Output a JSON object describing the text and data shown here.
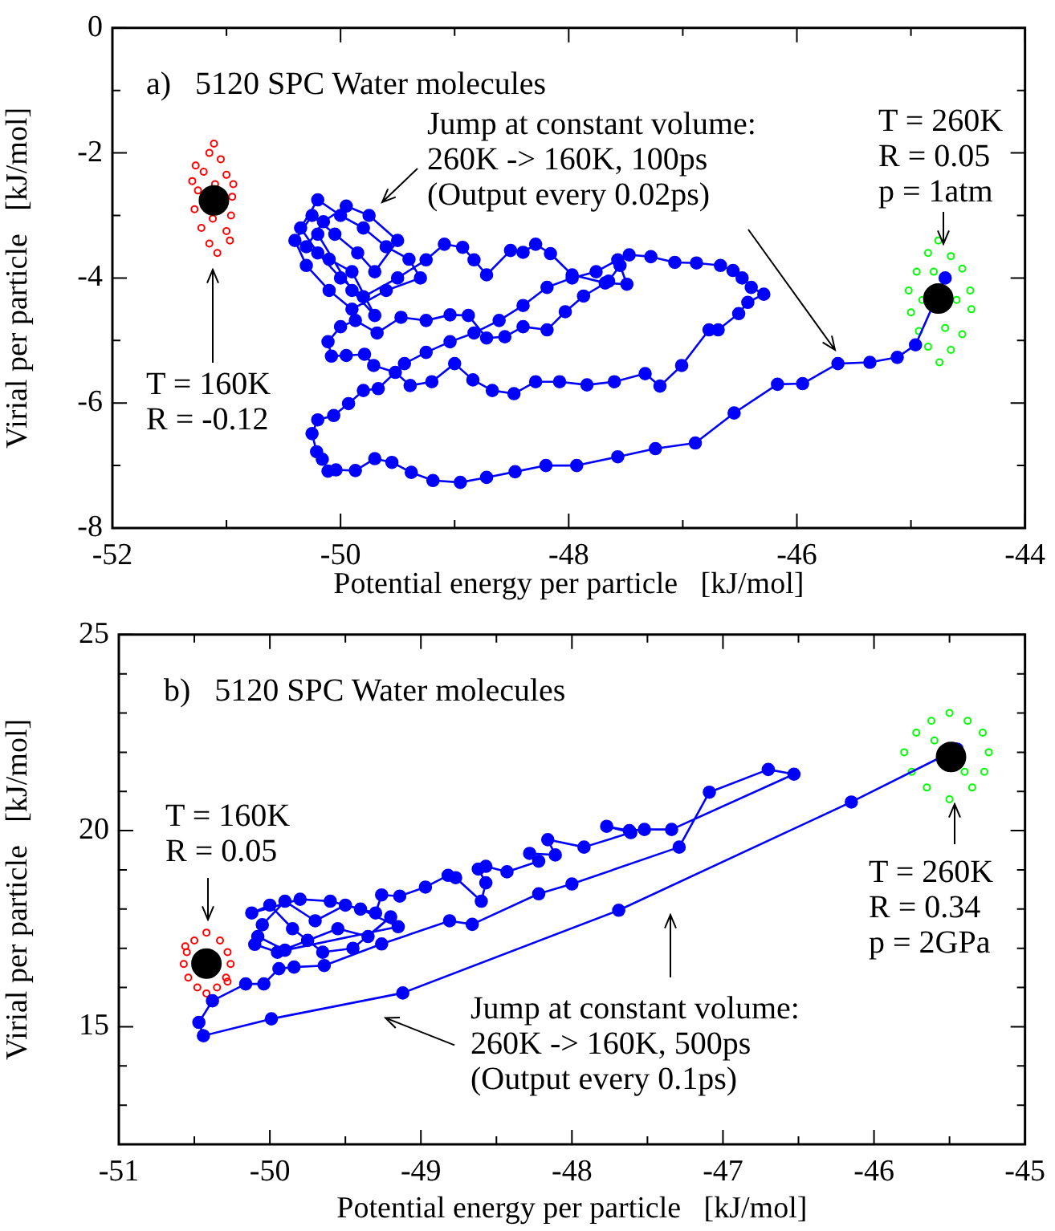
{
  "chart_data": [
    {
      "type": "scatter",
      "title": "a)   5120 SPC Water molecules",
      "xlabel": "Potential energy per particle   [kJ/mol]",
      "ylabel": "Virial per particle   [kJ/mol]",
      "marker": "circle",
      "line_style": "solid",
      "xlim": [
        -52,
        -44
      ],
      "ylim": [
        -8,
        0
      ],
      "xticks": [
        -52,
        {
          "value": -51,
          "label": null
        },
        -50,
        {
          "value": -49,
          "label": null
        },
        -48,
        {
          "value": -47,
          "label": null
        },
        -46,
        {
          "value": -45,
          "label": null
        },
        -44
      ],
      "yticks": [
        -8,
        {
          "value": -7,
          "label": null
        },
        -6,
        {
          "value": -5,
          "label": null
        },
        -4,
        {
          "value": -3,
          "label": null
        },
        -2,
        {
          "value": -1,
          "label": null
        },
        0
      ],
      "series": [
        {
          "type": "scatter",
          "color": "#ff0000",
          "x": [
            -51.11,
            -51.15,
            -51.05,
            -51.2,
            -51.0,
            -51.25,
            -50.95,
            -51.28,
            -50.96,
            -51.22,
            -51.0,
            -51.15,
            -51.08,
            -51.1,
            -51.12,
            -51.27,
            -50.97,
            -51.3,
            -50.94
          ],
          "values": [
            -1.85,
            -2.0,
            -2.1,
            -2.3,
            -2.35,
            -2.6,
            -2.7,
            -2.9,
            -3.0,
            -3.2,
            -3.25,
            -3.45,
            -3.6,
            -2.5,
            -3.05,
            -2.2,
            -3.4,
            -2.45,
            -2.5
          ]
        },
        {
          "type": "scatter",
          "color": "#00ff00",
          "x": [
            -44.76,
            -44.85,
            -44.65,
            -44.95,
            -44.55,
            -45.02,
            -44.48,
            -45.0,
            -44.47,
            -44.93,
            -44.55,
            -44.85,
            -44.65,
            -44.75,
            -44.9,
            -44.6,
            -44.8,
            -44.7
          ],
          "values": [
            -3.4,
            -3.6,
            -3.65,
            -3.9,
            -3.85,
            -4.2,
            -4.2,
            -4.55,
            -4.5,
            -4.85,
            -4.9,
            -5.1,
            -5.15,
            -5.35,
            -4.35,
            -4.35,
            -3.9,
            -4.8
          ]
        },
        {
          "type": "line",
          "color": "#0000ff",
          "x": [
            -44.7,
            -44.96,
            -45.12,
            -45.36,
            -45.64,
            -45.95,
            -46.17,
            -46.55,
            -46.89,
            -47.24,
            -47.57,
            -47.93,
            -48.2,
            -48.47,
            -48.72,
            -48.95,
            -49.19,
            -49.38,
            -49.55,
            -49.7,
            -49.87,
            -50.04,
            -50.11,
            -50.16,
            -50.21,
            -50.25,
            -50.2,
            -50.06,
            -49.93,
            -49.8,
            -49.67,
            -49.44,
            -49.25,
            -49.04,
            -48.83,
            -48.61,
            -48.4,
            -48.19,
            -47.97,
            -47.76,
            -47.57,
            -47.47,
            -47.28,
            -47.07,
            -46.88,
            -46.67,
            -46.56,
            -46.48,
            -46.4,
            -46.29,
            -46.43,
            -46.51,
            -46.69,
            -46.77,
            -47.01,
            -47.2,
            -47.33,
            -47.6,
            -47.84,
            -48.08,
            -48.29,
            -48.48,
            -48.67,
            -48.84,
            -49.0,
            -49.2,
            -49.39,
            -49.52,
            -49.71,
            -49.79,
            -49.95,
            -50.08,
            -50.11,
            -50.0,
            -49.87,
            -49.68,
            -49.47,
            -49.25,
            -49.04,
            -48.88,
            -48.72,
            -48.56,
            -48.4,
            -48.19,
            -48.03,
            -47.87,
            -47.65,
            -47.55,
            -47.49,
            -47.68,
            -47.97,
            -48.16,
            -48.29,
            -48.4,
            -48.51,
            -48.72,
            -48.83,
            -48.93,
            -49.09,
            -49.25,
            -49.5,
            -49.8,
            -50.0,
            -50.2,
            -50.35,
            -50.2,
            -50.0,
            -49.8,
            -49.6,
            -49.4,
            -49.3,
            -49.6,
            -49.9,
            -50.1,
            -50.3,
            -50.4,
            -50.25,
            -50.05,
            -49.85,
            -49.7,
            -49.5,
            -49.75,
            -49.95,
            -50.15,
            -50.3,
            -50.1,
            -49.9,
            -49.7,
            -49.9,
            -50.2
          ],
          "values": [
            -4.0,
            -5.07,
            -5.27,
            -5.35,
            -5.37,
            -5.69,
            -5.7,
            -6.16,
            -6.64,
            -6.73,
            -6.86,
            -7.0,
            -7.0,
            -7.1,
            -7.19,
            -7.27,
            -7.24,
            -7.11,
            -6.95,
            -6.89,
            -7.08,
            -7.07,
            -7.09,
            -6.9,
            -6.78,
            -6.49,
            -6.27,
            -6.2,
            -6.01,
            -5.8,
            -5.77,
            -5.37,
            -5.19,
            -5.02,
            -4.88,
            -4.68,
            -4.44,
            -4.15,
            -4.0,
            -3.9,
            -3.71,
            -3.63,
            -3.66,
            -3.75,
            -3.76,
            -3.8,
            -3.88,
            -4.0,
            -4.15,
            -4.26,
            -4.39,
            -4.57,
            -4.83,
            -4.83,
            -5.4,
            -5.73,
            -5.53,
            -5.66,
            -5.71,
            -5.66,
            -5.66,
            -5.85,
            -5.8,
            -5.63,
            -5.37,
            -5.66,
            -5.72,
            -5.51,
            -5.4,
            -5.22,
            -5.24,
            -5.25,
            -5.02,
            -4.78,
            -4.68,
            -4.88,
            -4.63,
            -4.68,
            -4.59,
            -4.6,
            -4.96,
            -4.94,
            -4.78,
            -4.83,
            -4.54,
            -4.29,
            -4.05,
            -3.8,
            -4.1,
            -4.08,
            -3.95,
            -3.61,
            -3.46,
            -3.59,
            -3.56,
            -3.95,
            -3.71,
            -3.51,
            -3.46,
            -3.71,
            -4.0,
            -4.3,
            -4.0,
            -3.6,
            -3.2,
            -2.75,
            -3.0,
            -3.2,
            -3.5,
            -3.7,
            -4.0,
            -4.2,
            -4.5,
            -4.2,
            -3.8,
            -3.4,
            -3.0,
            -3.3,
            -3.6,
            -3.9,
            -3.4,
            -3.0,
            -2.85,
            -3.1,
            -3.5,
            -3.7,
            -3.9,
            -4.6,
            -4.2,
            -3.3
          ]
        },
        {
          "type": "scatter",
          "color": "#000000",
          "x": [
            -51.11
          ],
          "values": [
            -2.76
          ]
        },
        {
          "type": "scatter",
          "color": "#000000",
          "x": [
            -44.76
          ],
          "values": [
            -4.33
          ]
        }
      ],
      "annotations": [
        "T = 160K\nR = -0.12",
        "Jump at constant volume:\n260K -> 160K, 100ps\n(Output every 0.02ps)",
        "T = 260K\nR = 0.05\np = 1atm"
      ]
    },
    {
      "type": "scatter",
      "title": "b)   5120 SPC Water molecules",
      "xlabel": "Potential energy per particle   [kJ/mol]",
      "ylabel": "Virial per particle   [kJ/mol]",
      "marker": "circle",
      "line_style": "solid",
      "xlim": [
        -51,
        -45
      ],
      "ylim": [
        12,
        25
      ],
      "xticks": [
        -51,
        {
          "value": -50.5,
          "label": null
        },
        -50,
        {
          "value": -49.5,
          "label": null
        },
        -49,
        {
          "value": -48.5,
          "label": null
        },
        -48,
        {
          "value": -47.5,
          "label": null
        },
        -47,
        {
          "value": -46.5,
          "label": null
        },
        -46,
        {
          "value": -45.5,
          "label": null
        },
        -45
      ],
      "yticks": [
        {
          "value": 13,
          "label": null
        },
        {
          "value": 14,
          "label": null
        },
        15,
        {
          "value": 16,
          "label": null
        },
        {
          "value": 17,
          "label": null
        },
        {
          "value": 18,
          "label": null
        },
        {
          "value": 19,
          "label": null
        },
        20,
        {
          "value": 21,
          "label": null
        },
        {
          "value": 22,
          "label": null
        },
        {
          "value": 23,
          "label": null
        },
        {
          "value": 24,
          "label": null
        },
        25
      ],
      "series": [
        {
          "type": "scatter",
          "color": "#ff0000",
          "x": [
            -50.42,
            -50.5,
            -50.33,
            -50.55,
            -50.28,
            -50.57,
            -50.26,
            -50.54,
            -50.29,
            -50.48,
            -50.35,
            -50.42,
            -50.56,
            -50.28
          ],
          "values": [
            17.4,
            17.2,
            17.2,
            16.9,
            16.9,
            16.6,
            16.6,
            16.25,
            16.25,
            16.0,
            16.0,
            15.85,
            17.05,
            16.15
          ]
        },
        {
          "type": "scatter",
          "color": "#00ff00",
          "x": [
            -45.5,
            -45.62,
            -45.38,
            -45.72,
            -45.28,
            -45.8,
            -45.24,
            -45.75,
            -45.27,
            -45.65,
            -45.35,
            -45.5,
            -45.6,
            -45.4
          ],
          "values": [
            23.0,
            22.8,
            22.8,
            22.5,
            22.5,
            22.0,
            22.0,
            21.5,
            21.5,
            21.1,
            21.1,
            20.8,
            22.3,
            21.5
          ]
        },
        {
          "type": "line",
          "color": "#0000ff",
          "x": [
            -45.45,
            -46.15,
            -47.69,
            -49.12,
            -49.99,
            -50.44,
            -50.47,
            -50.38,
            -50.16,
            -50.04,
            -49.94,
            -49.84,
            -49.64,
            -49.26,
            -48.81,
            -48.66,
            -48.22,
            -48.0,
            -47.29,
            -47.09,
            -46.7,
            -46.53,
            -47.34,
            -47.52,
            -47.62,
            -47.77,
            -47.61,
            -47.92,
            -48.16,
            -48.11,
            -48.28,
            -48.22,
            -48.43,
            -48.57,
            -48.62,
            -48.57,
            -48.6,
            -48.77,
            -48.82,
            -48.97,
            -49.14,
            -49.26,
            -49.3,
            -49.5,
            -49.7,
            -49.9,
            -50.05,
            -50.1,
            -49.95,
            -49.75,
            -49.55,
            -49.35,
            -49.2,
            -49.45,
            -49.65,
            -49.85,
            -50.0,
            -50.12,
            -49.8,
            -49.6,
            -49.4,
            -49.15,
            -49.9,
            -50.08
          ],
          "values": [
            22.08,
            20.73,
            17.97,
            15.86,
            15.2,
            14.77,
            15.11,
            15.66,
            16.09,
            16.09,
            16.48,
            16.52,
            16.56,
            17.11,
            17.7,
            17.61,
            18.39,
            18.64,
            19.58,
            20.98,
            21.56,
            21.44,
            20.03,
            20.03,
            20.0,
            20.11,
            19.95,
            19.58,
            19.77,
            19.38,
            19.42,
            19.22,
            18.95,
            19.09,
            19.02,
            18.67,
            18.2,
            18.8,
            18.86,
            18.56,
            18.33,
            18.36,
            17.9,
            18.1,
            17.7,
            18.2,
            17.6,
            17.1,
            16.9,
            17.2,
            17.5,
            17.3,
            17.8,
            17.0,
            16.9,
            17.5,
            18.1,
            17.9,
            18.25,
            18.2,
            18.0,
            17.55,
            16.95,
            17.3
          ]
        },
        {
          "type": "scatter",
          "color": "#000000",
          "x": [
            -50.42
          ],
          "values": [
            16.61
          ]
        },
        {
          "type": "scatter",
          "color": "#000000",
          "x": [
            -45.49
          ],
          "values": [
            21.88
          ]
        }
      ],
      "annotations": [
        "T = 160K\nR = 0.05",
        "T = 260K\nR = 0.34\np = 2GPa",
        "Jump at constant volume:\n260K -> 160K, 500ps\n(Output every 0.1ps)"
      ]
    }
  ]
}
